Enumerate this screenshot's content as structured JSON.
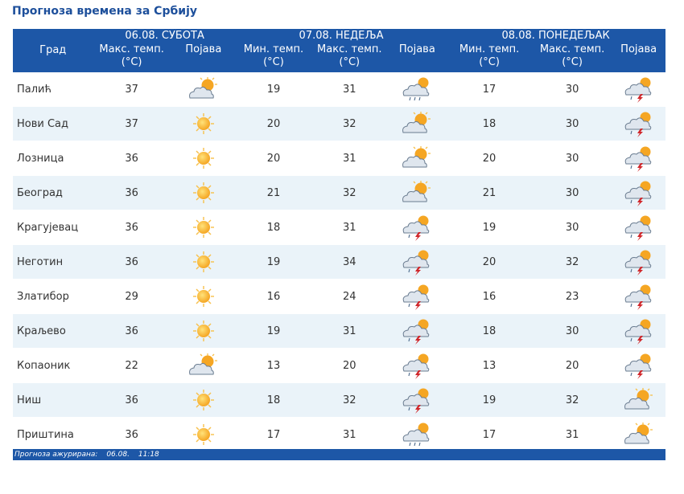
{
  "page_title": "Прогноза времена за Србију",
  "headers": {
    "city": "Град",
    "days": [
      "06.08. СУБОТА",
      "07.08. НЕДЕЉА",
      "08.08. ПОНЕДЕЉАК"
    ],
    "max_temp": "Макс. темп.",
    "min_temp": "Мин. темп.",
    "unit": "(°C)",
    "phenomenon": "Појава"
  },
  "rows": [
    {
      "city": "Палић",
      "d1_max": "37",
      "d1_icon": "partly-cloudy-icon",
      "d2_min": "19",
      "d2_max": "31",
      "d2_icon": "showers-icon",
      "d3_min": "17",
      "d3_max": "30",
      "d3_icon": "thunderstorm-icon"
    },
    {
      "city": "Нови Сад",
      "d1_max": "37",
      "d1_icon": "sunny-icon",
      "d2_min": "20",
      "d2_max": "32",
      "d2_icon": "partly-cloudy-icon",
      "d3_min": "18",
      "d3_max": "30",
      "d3_icon": "thunderstorm-icon"
    },
    {
      "city": "Лозница",
      "d1_max": "36",
      "d1_icon": "sunny-icon",
      "d2_min": "20",
      "d2_max": "31",
      "d2_icon": "partly-cloudy-icon",
      "d3_min": "20",
      "d3_max": "30",
      "d3_icon": "thunderstorm-icon"
    },
    {
      "city": "Београд",
      "d1_max": "36",
      "d1_icon": "sunny-icon",
      "d2_min": "21",
      "d2_max": "32",
      "d2_icon": "partly-cloudy-icon",
      "d3_min": "21",
      "d3_max": "30",
      "d3_icon": "thunderstorm-icon"
    },
    {
      "city": "Крагујевац",
      "d1_max": "36",
      "d1_icon": "sunny-icon",
      "d2_min": "18",
      "d2_max": "31",
      "d2_icon": "thunderstorm-icon",
      "d3_min": "19",
      "d3_max": "30",
      "d3_icon": "thunderstorm-icon"
    },
    {
      "city": "Неготин",
      "d1_max": "36",
      "d1_icon": "sunny-icon",
      "d2_min": "19",
      "d2_max": "34",
      "d2_icon": "thunderstorm-icon",
      "d3_min": "20",
      "d3_max": "32",
      "d3_icon": "thunderstorm-icon"
    },
    {
      "city": "Златибор",
      "d1_max": "29",
      "d1_icon": "sunny-icon",
      "d2_min": "16",
      "d2_max": "24",
      "d2_icon": "thunderstorm-icon",
      "d3_min": "16",
      "d3_max": "23",
      "d3_icon": "thunderstorm-icon"
    },
    {
      "city": "Краљево",
      "d1_max": "36",
      "d1_icon": "sunny-icon",
      "d2_min": "19",
      "d2_max": "31",
      "d2_icon": "thunderstorm-icon",
      "d3_min": "18",
      "d3_max": "30",
      "d3_icon": "thunderstorm-icon"
    },
    {
      "city": "Копаоник",
      "d1_max": "22",
      "d1_icon": "partly-cloudy-icon",
      "d2_min": "13",
      "d2_max": "20",
      "d2_icon": "thunderstorm-icon",
      "d3_min": "13",
      "d3_max": "20",
      "d3_icon": "thunderstorm-icon"
    },
    {
      "city": "Ниш",
      "d1_max": "36",
      "d1_icon": "sunny-icon",
      "d2_min": "18",
      "d2_max": "32",
      "d2_icon": "thunderstorm-icon",
      "d3_min": "19",
      "d3_max": "32",
      "d3_icon": "partly-cloudy-icon"
    },
    {
      "city": "Приштина",
      "d1_max": "36",
      "d1_icon": "sunny-icon",
      "d2_min": "17",
      "d2_max": "31",
      "d2_icon": "showers-icon",
      "d3_min": "17",
      "d3_max": "31",
      "d3_icon": "partly-cloudy-icon"
    }
  ],
  "footer": {
    "label": "Прогноза ажурирана:",
    "date": "06.08.",
    "time": "11:18"
  },
  "colors": {
    "header_bg": "#1d57a7",
    "title": "#1d4f9b",
    "row_alt": "#eaf3f9",
    "sun": "#f5a623",
    "cloud": "#dfe6ee",
    "bolt": "#d0262a"
  }
}
